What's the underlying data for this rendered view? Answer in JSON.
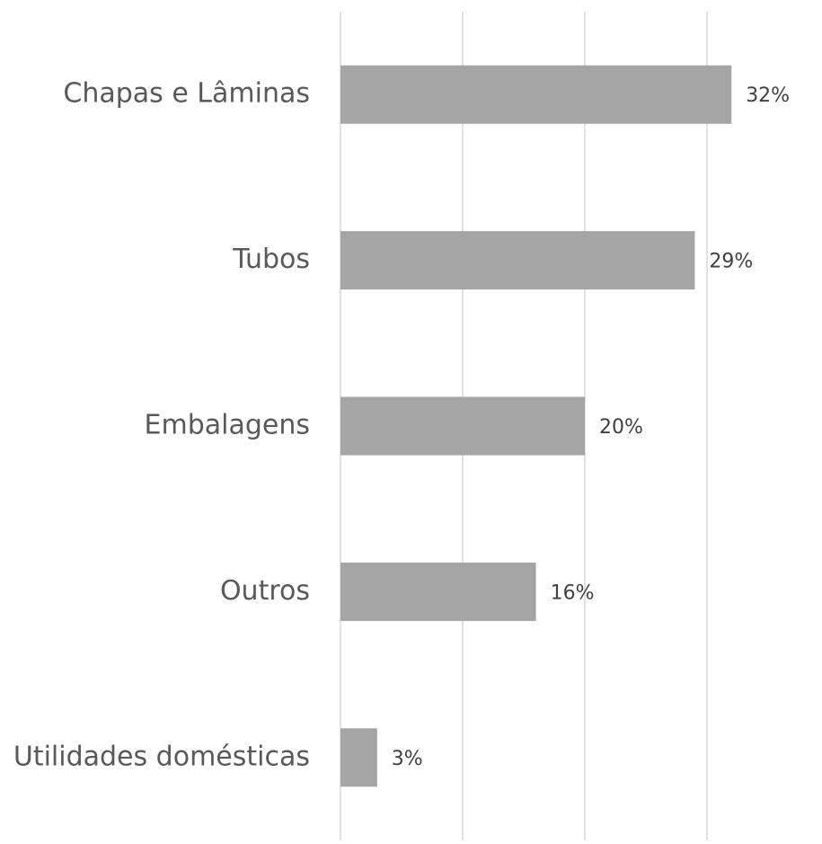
{
  "chart_data": {
    "type": "bar",
    "orientation": "horizontal",
    "categories": [
      "Chapas e Lâminas",
      "Tubos",
      "Embalagens",
      "Outros",
      "Utilidades domésticas"
    ],
    "values": [
      32,
      29,
      20,
      16,
      3
    ],
    "value_labels": [
      "32%",
      "29%",
      "20%",
      "16%",
      "3%"
    ],
    "color": "#a5a5a5",
    "xlim": [
      0,
      35
    ],
    "xticks": [
      0,
      10,
      20,
      30
    ],
    "grid": true
  }
}
